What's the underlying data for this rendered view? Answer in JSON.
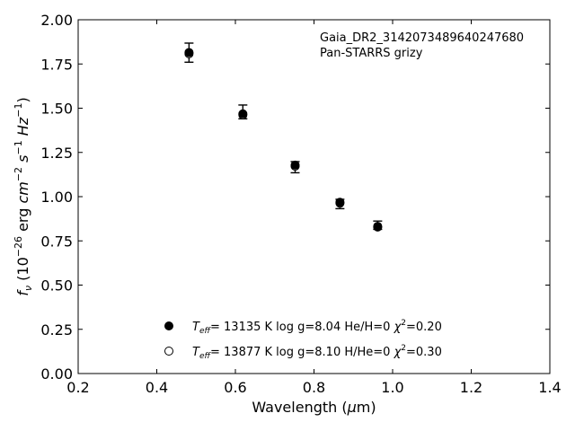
{
  "chart_data": {
    "type": "scatter",
    "xlabel": "Wavelength (μm)",
    "ylabel": "f_ν (10^-26 erg cm^-2 s^-1 Hz^-1)",
    "xlim": [
      0.2,
      1.4
    ],
    "ylim": [
      0.0,
      2.0
    ],
    "xticks": [
      0.2,
      0.4,
      0.6,
      0.8,
      1.0,
      1.2,
      1.4
    ],
    "xtick_labels": [
      "0.2",
      "0.4",
      "0.6",
      "0.8",
      "1.0",
      "1.2",
      "1.4"
    ],
    "yticks": [
      0.0,
      0.25,
      0.5,
      0.75,
      1.0,
      1.25,
      1.5,
      1.75,
      2.0
    ],
    "ytick_labels": [
      "0.00",
      "0.25",
      "0.50",
      "0.75",
      "1.00",
      "1.25",
      "1.50",
      "1.75",
      "2.00"
    ],
    "grid": false,
    "annotation": {
      "line1": "Gaia_DR2_3142073489640247680",
      "line2": "Pan-STARRS grizy"
    },
    "observed": {
      "x": [
        0.482,
        0.619,
        0.752,
        0.866,
        0.962
      ],
      "y": [
        1.815,
        1.478,
        1.168,
        0.958,
        0.838
      ],
      "err_low": [
        1.76,
        1.44,
        1.135,
        0.932,
        0.815
      ],
      "err_high": [
        1.868,
        1.518,
        1.198,
        0.985,
        0.862
      ]
    },
    "series": [
      {
        "marker": "filled",
        "x": [
          0.482,
          0.619,
          0.752,
          0.866,
          0.962
        ],
        "y": [
          1.815,
          1.468,
          1.178,
          0.968,
          0.828
        ],
        "legend": {
          "teff_prefix": "T",
          "teff_sub": "eff",
          "teff_rest": "= 13135 K  log g=8.04  He/H=0  ",
          "chi_symbol": "χ",
          "chi_sup": "2",
          "chi_rest": "=0.20"
        }
      },
      {
        "marker": "open",
        "x": [
          0.482,
          0.619,
          0.752,
          0.866,
          0.962
        ],
        "y": [
          1.808,
          1.462,
          1.172,
          0.963,
          0.832
        ],
        "legend": {
          "teff_prefix": "T",
          "teff_sub": "eff",
          "teff_rest": "= 13877 K  log g=8.10  H/He=0  ",
          "chi_symbol": "χ",
          "chi_sup": "2",
          "chi_rest": "=0.30"
        }
      }
    ],
    "legend_placement": "lower-center"
  }
}
